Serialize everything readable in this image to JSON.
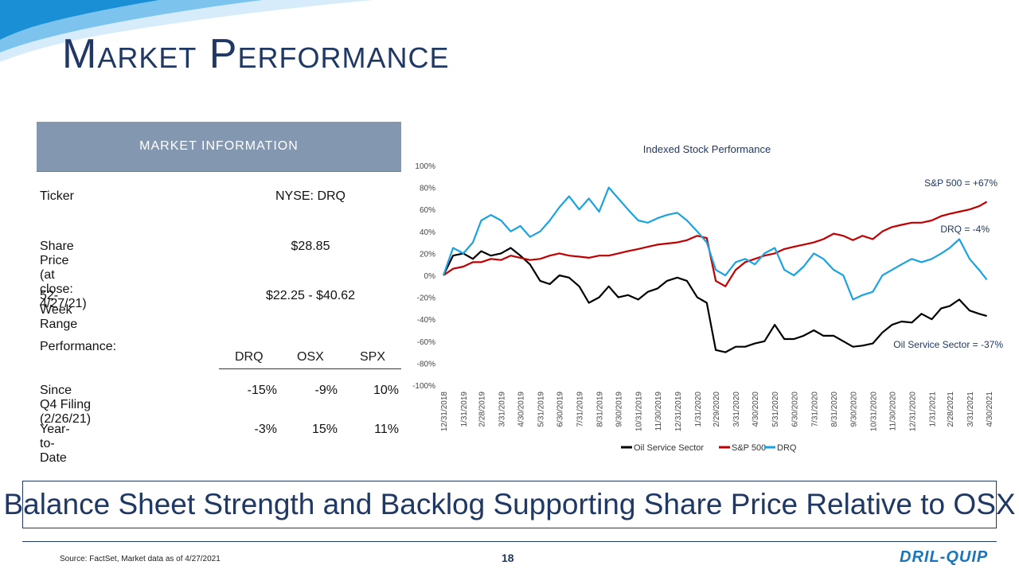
{
  "page": {
    "title": "Market Performance",
    "page_number": "18",
    "source": "Source: FactSet, Market data as of 4/27/2021",
    "logo_text": "DRIL-QUIP"
  },
  "market_info": {
    "header": "MARKET INFORMATION",
    "ticker_label": "Ticker",
    "ticker_value": "NYSE: DRQ",
    "price_label": "Share Price (at close: 4/27/21)",
    "price_value": "$28.85",
    "range_label": "52-Week Range",
    "range_value": "$22.25 - $40.62",
    "performance_label": "Performance:",
    "columns": [
      "DRQ",
      "OSX",
      "SPX"
    ],
    "rows": [
      {
        "label": "Since Q4 Filing (2/26/21)",
        "values": [
          "-15%",
          "-9%",
          "10%"
        ]
      },
      {
        "label": "Year-to-Date",
        "values": [
          "-3%",
          "15%",
          "11%"
        ]
      }
    ]
  },
  "banner": "Balance Sheet Strength and Backlog Supporting Share Price Relative to OSX",
  "colors": {
    "title": "#1f3864",
    "header_bg": "#8497b0",
    "osx": "#000000",
    "spx": "#c00000",
    "drq": "#1aa3e0"
  },
  "chart_data": {
    "type": "line",
    "title": "Indexed Stock Performance",
    "ylim": [
      -100,
      100
    ],
    "y_ticks": [
      "100%",
      "80%",
      "60%",
      "40%",
      "20%",
      "0%",
      "-20%",
      "-40%",
      "-60%",
      "-80%",
      "-100%"
    ],
    "x_ticks": [
      "12/31/2018",
      "1/31/2019",
      "2/28/2019",
      "3/31/2019",
      "4/30/2019",
      "5/31/2019",
      "6/30/2019",
      "7/31/2019",
      "8/31/2019",
      "9/30/2019",
      "10/31/2019",
      "11/30/2019",
      "12/31/2019",
      "1/31/2020",
      "2/29/2020",
      "3/31/2020",
      "4/30/2020",
      "5/31/2020",
      "6/30/2020",
      "7/31/2020",
      "8/31/2020",
      "9/30/2020",
      "10/31/2020",
      "11/30/2020",
      "12/31/2020",
      "1/31/2021",
      "2/28/2021",
      "3/31/2021",
      "4/30/2021"
    ],
    "x": [
      "12/31/2018",
      "1/15/2019",
      "1/31/2019",
      "2/15/2019",
      "2/28/2019",
      "3/15/2019",
      "3/31/2019",
      "4/15/2019",
      "4/30/2019",
      "5/15/2019",
      "5/31/2019",
      "6/15/2019",
      "6/30/2019",
      "7/15/2019",
      "7/31/2019",
      "8/15/2019",
      "8/31/2019",
      "9/15/2019",
      "9/30/2019",
      "10/15/2019",
      "10/31/2019",
      "11/15/2019",
      "11/30/2019",
      "12/15/2019",
      "12/31/2019",
      "1/15/2020",
      "1/31/2020",
      "2/15/2020",
      "2/29/2020",
      "3/15/2020",
      "3/31/2020",
      "4/15/2020",
      "4/30/2020",
      "5/15/2020",
      "5/31/2020",
      "6/15/2020",
      "6/30/2020",
      "7/15/2020",
      "7/31/2020",
      "8/15/2020",
      "8/31/2020",
      "9/15/2020",
      "9/30/2020",
      "10/15/2020",
      "10/31/2020",
      "11/15/2020",
      "11/30/2020",
      "12/15/2020",
      "12/31/2020",
      "1/15/2021",
      "1/31/2021",
      "2/15/2021",
      "2/28/2021",
      "3/15/2021",
      "3/31/2021",
      "4/15/2021",
      "4/27/2021"
    ],
    "series": [
      {
        "name": "Oil Service Sector",
        "color": "#000000",
        "values": [
          0,
          18,
          20,
          15,
          22,
          18,
          20,
          25,
          18,
          10,
          -5,
          -8,
          0,
          -2,
          -10,
          -25,
          -20,
          -10,
          -20,
          -18,
          -22,
          -15,
          -12,
          -5,
          -2,
          -5,
          -20,
          -25,
          -68,
          -70,
          -65,
          -65,
          -62,
          -60,
          -45,
          -58,
          -58,
          -55,
          -50,
          -55,
          -55,
          -60,
          -65,
          -64,
          -62,
          -52,
          -45,
          -42,
          -43,
          -35,
          -40,
          -30,
          -28,
          -22,
          -32,
          -35,
          -37
        ]
      },
      {
        "name": "S&P 500",
        "color": "#c00000",
        "values": [
          0,
          6,
          8,
          12,
          12,
          15,
          14,
          18,
          16,
          14,
          15,
          18,
          20,
          18,
          17,
          16,
          18,
          18,
          20,
          22,
          24,
          26,
          28,
          29,
          30,
          32,
          36,
          34,
          -5,
          -10,
          5,
          12,
          15,
          18,
          20,
          24,
          26,
          28,
          30,
          33,
          38,
          36,
          32,
          36,
          33,
          40,
          44,
          46,
          48,
          48,
          50,
          54,
          56,
          58,
          60,
          63,
          67
        ]
      },
      {
        "name": "DRQ",
        "color": "#1aa3e0",
        "values": [
          0,
          25,
          20,
          30,
          50,
          55,
          50,
          40,
          45,
          35,
          40,
          50,
          62,
          72,
          60,
          70,
          58,
          80,
          70,
          60,
          50,
          48,
          52,
          55,
          57,
          50,
          40,
          30,
          5,
          0,
          12,
          15,
          10,
          20,
          25,
          5,
          0,
          8,
          20,
          15,
          5,
          0,
          -22,
          -18,
          -15,
          0,
          5,
          10,
          15,
          12,
          15,
          20,
          25,
          33,
          15,
          5,
          -4
        ]
      }
    ],
    "annotations": [
      "S&P 500 = +67%",
      "DRQ = -4%",
      "Oil Service Sector = -37%"
    ],
    "legend": "bottom"
  }
}
